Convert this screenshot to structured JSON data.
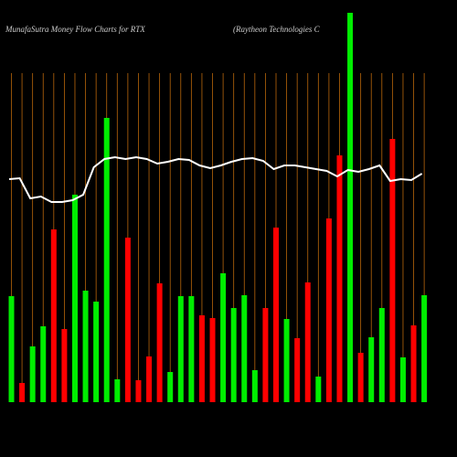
{
  "chart_data": {
    "type": "bar",
    "title": "MunafaSutra  Money Flow  Charts for RTX",
    "subtitle": "(Raytheon  Technologies C",
    "categories": [
      null,
      null,
      null,
      null,
      null,
      null,
      null,
      null,
      null,
      null,
      null,
      null,
      null,
      null,
      null,
      null,
      null,
      null,
      null,
      null,
      null,
      null,
      null,
      null,
      null,
      null,
      null,
      null,
      null,
      null,
      null,
      null,
      null,
      null,
      null,
      null,
      null,
      null,
      null,
      null
    ],
    "ylim": [
      0,
      430
    ],
    "y2lim": [
      0,
      430
    ],
    "grid": true,
    "series": [
      {
        "type": "bar",
        "colors": [
          "#00ee00",
          "#ff0000",
          "#00ee00",
          "#00ee00",
          "#ff0000",
          "#ff0000",
          "#00ee00",
          "#00ee00",
          "#00ee00",
          "#00ee00",
          "#00ee00",
          "#ff0000",
          "#ff0000",
          "#ff0000",
          "#ff0000",
          "#00ee00",
          "#00ee00",
          "#00ee00",
          "#ff0000",
          "#ff0000",
          "#00ee00",
          "#00ee00",
          "#00ee00",
          "#00ee00",
          "#ff0000",
          "#ff0000",
          "#00ee00",
          "#ff0000",
          "#ff0000",
          "#00ee00",
          "#ff0000",
          "#ff0000",
          "#00ee00",
          "#ff0000",
          "#00ee00",
          "#00ee00",
          "#ff0000",
          "#00ee00",
          "#ff0000",
          "#00ee00"
        ],
        "values": [
          116,
          21,
          61,
          83,
          189,
          80,
          227,
          122,
          110,
          311,
          25,
          180,
          24,
          50,
          130,
          33,
          116,
          116,
          95,
          92,
          141,
          103,
          117,
          35,
          103,
          191,
          91,
          70,
          131,
          28,
          201,
          270,
          426,
          54,
          71,
          103,
          288,
          49,
          84,
          117
        ]
      },
      {
        "type": "line",
        "axis": "y2",
        "color": "#ffffff",
        "values": [
          244,
          245,
          223,
          225,
          219,
          219,
          221,
          227,
          257,
          266,
          268,
          266,
          268,
          266,
          261,
          263,
          266,
          265,
          259,
          256,
          259,
          263,
          266,
          267,
          264,
          255,
          259,
          259,
          257,
          255,
          253,
          247,
          254,
          252,
          255,
          259,
          242,
          244,
          243,
          250
        ]
      }
    ]
  }
}
